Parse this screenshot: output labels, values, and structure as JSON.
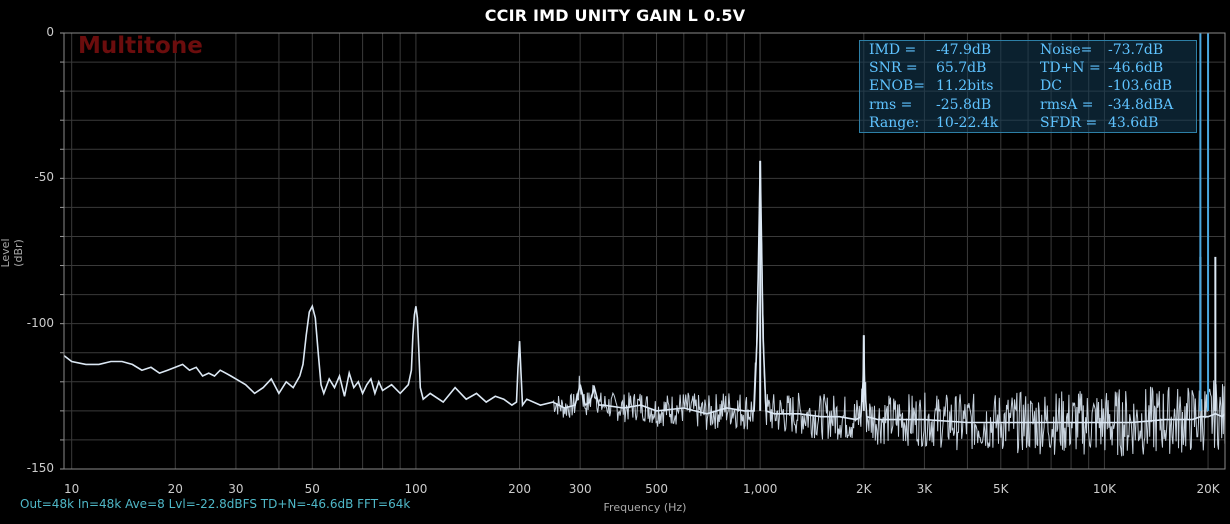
{
  "title": "CCIR IMD UNITY GAIN L 0.5V",
  "watermark": "Multitone",
  "status_line": "Out=48k In=48k Ave=8 Lvl=-22.8dBFS TD+N=-46.6dB FFT=64k",
  "stats": [
    {
      "label": "IMD =",
      "value": "-47.9dB"
    },
    {
      "label": "Noise=",
      "value": "-73.7dB"
    },
    {
      "label": "SNR =",
      "value": "65.7dB"
    },
    {
      "label": "TD+N =",
      "value": "-46.6dB"
    },
    {
      "label": "ENOB=",
      "value": "11.2bits"
    },
    {
      "label": "DC",
      "value": "-103.6dB"
    },
    {
      "label": "rms =",
      "value": "-25.8dB"
    },
    {
      "label": "rmsA =",
      "value": "-34.8dBA"
    },
    {
      "label": "Range:",
      "value": "10-22.4k"
    },
    {
      "label": "SFDR =",
      "value": "43.6dB"
    }
  ],
  "colors": {
    "trace": "#dce8f4",
    "tones": "#4aa8e0",
    "grid": "#3a3a3a",
    "status": "#4fb8c8",
    "watermark": "#6b0d0d"
  },
  "chart_data": {
    "type": "line",
    "title": "CCIR IMD UNITY GAIN L 0.5V",
    "xlabel": "Frequency (Hz)",
    "ylabel": "Level (dBr)",
    "xscale": "log",
    "xlim": [
      9.5,
      22400
    ],
    "ylim": [
      -150,
      0
    ],
    "grid": true,
    "y_ticks": [
      0,
      -50,
      -100,
      -150
    ],
    "x_ticks": [
      {
        "v": 10,
        "label": "10"
      },
      {
        "v": 20,
        "label": "20"
      },
      {
        "v": 30,
        "label": "30"
      },
      {
        "v": 50,
        "label": "50"
      },
      {
        "v": 100,
        "label": "100"
      },
      {
        "v": 200,
        "label": "200"
      },
      {
        "v": 300,
        "label": "300"
      },
      {
        "v": 500,
        "label": "500"
      },
      {
        "v": 1000,
        "label": "1,000"
      },
      {
        "v": 2000,
        "label": "2K"
      },
      {
        "v": 3000,
        "label": "3K"
      },
      {
        "v": 5000,
        "label": "5K"
      },
      {
        "v": 10000,
        "label": "10K"
      },
      {
        "v": 20000,
        "label": "20K"
      }
    ],
    "series": [
      {
        "x": [
          9.5,
          10,
          11,
          12,
          13,
          14,
          15,
          16,
          17,
          18,
          19,
          20,
          21,
          22,
          23,
          24,
          25,
          26,
          27,
          28,
          29,
          30,
          32,
          34,
          36,
          38,
          40,
          42,
          44,
          46,
          47,
          48,
          49,
          50,
          51,
          52,
          53,
          54,
          56,
          58,
          60,
          62,
          64,
          66,
          68,
          70,
          72,
          74,
          76,
          78,
          80,
          85,
          90,
          95,
          97,
          98,
          99,
          100,
          101,
          102,
          103,
          105,
          110,
          120,
          130,
          140,
          150,
          160,
          170,
          180,
          190,
          196,
          198,
          200,
          202,
          204,
          210,
          230,
          250,
          270,
          290,
          300,
          310,
          320,
          330,
          340,
          350,
          400,
          450,
          500,
          600,
          700,
          800,
          900,
          960,
          980,
          1000,
          1020,
          1040,
          1100,
          1300,
          1500,
          1700,
          1900,
          1960,
          1990,
          2000,
          2010,
          2040,
          2200,
          2600,
          3000,
          4000,
          5000,
          6000,
          8000,
          10000,
          12000,
          15000,
          18000,
          19000,
          20000,
          21000,
          22000,
          22400
        ],
        "y": [
          -111,
          -113,
          -114,
          -114,
          -113,
          -113,
          -114,
          -116,
          -115,
          -117,
          -116,
          -115,
          -114,
          -116,
          -115,
          -118,
          -117,
          -118,
          -116,
          -117,
          -118,
          -119,
          -121,
          -124,
          -122,
          -119,
          -124,
          -120,
          -122,
          -118,
          -114,
          -104,
          -96,
          -94,
          -98,
          -110,
          -121,
          -124,
          -119,
          -122,
          -118,
          -125,
          -117,
          -122,
          -120,
          -124,
          -121,
          -119,
          -124,
          -120,
          -123,
          -121,
          -124,
          -121,
          -116,
          -104,
          -97,
          -94,
          -98,
          -110,
          -122,
          -126,
          -124,
          -127,
          -122,
          -126,
          -124,
          -127,
          -125,
          -126,
          -128,
          -127,
          -115,
          -106,
          -117,
          -128,
          -126,
          -128,
          -127,
          -129,
          -128,
          -121,
          -128,
          -127,
          -122,
          -128,
          -128,
          -129,
          -128,
          -130,
          -129,
          -131,
          -129,
          -130,
          -130,
          -104,
          -44,
          -105,
          -130,
          -131,
          -131,
          -132,
          -132,
          -133,
          -132,
          -120,
          -104,
          -120,
          -132,
          -133,
          -133,
          -133,
          -134,
          -134,
          -134,
          -134,
          -134,
          -134,
          -133,
          -133,
          -132,
          -132,
          -131,
          -132,
          -131
        ]
      }
    ],
    "spikes": [
      {
        "freq": 1000,
        "level": -44
      },
      {
        "freq": 2000,
        "level": -104
      },
      {
        "freq": 19000,
        "level": -77
      },
      {
        "freq": 21000,
        "level": -77
      }
    ],
    "tones": [
      {
        "freq": 19000,
        "level": 0
      },
      {
        "freq": 20000,
        "level": 0
      }
    ]
  }
}
